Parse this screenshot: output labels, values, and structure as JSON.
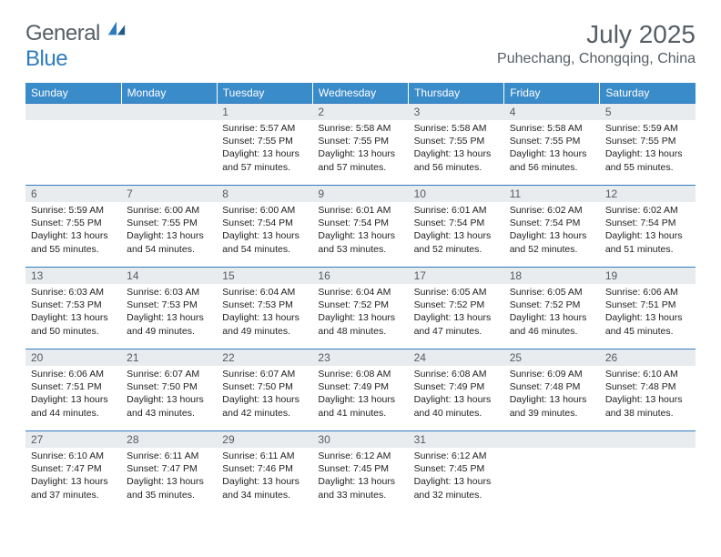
{
  "logo": {
    "text_general": "General",
    "text_blue": "Blue"
  },
  "header": {
    "month_title": "July 2025",
    "location": "Puhechang, Chongqing, China"
  },
  "colors": {
    "brand_blue": "#2f7bbf",
    "header_row": "#3a8bc9",
    "daynum_bg": "#e9ecef",
    "text_muted": "#565e66",
    "text_body": "#222222",
    "white": "#ffffff"
  },
  "typography": {
    "month_title_pt": 28,
    "location_pt": 16,
    "header_cell_pt": 12,
    "daynum_pt": 12,
    "body_pt": 10.5
  },
  "day_headers": [
    "Sunday",
    "Monday",
    "Tuesday",
    "Wednesday",
    "Thursday",
    "Friday",
    "Saturday"
  ],
  "weeks": [
    [
      {
        "n": "",
        "lines": []
      },
      {
        "n": "",
        "lines": []
      },
      {
        "n": "1",
        "lines": [
          "Sunrise: 5:57 AM",
          "Sunset: 7:55 PM",
          "Daylight: 13 hours and 57 minutes."
        ]
      },
      {
        "n": "2",
        "lines": [
          "Sunrise: 5:58 AM",
          "Sunset: 7:55 PM",
          "Daylight: 13 hours and 57 minutes."
        ]
      },
      {
        "n": "3",
        "lines": [
          "Sunrise: 5:58 AM",
          "Sunset: 7:55 PM",
          "Daylight: 13 hours and 56 minutes."
        ]
      },
      {
        "n": "4",
        "lines": [
          "Sunrise: 5:58 AM",
          "Sunset: 7:55 PM",
          "Daylight: 13 hours and 56 minutes."
        ]
      },
      {
        "n": "5",
        "lines": [
          "Sunrise: 5:59 AM",
          "Sunset: 7:55 PM",
          "Daylight: 13 hours and 55 minutes."
        ]
      }
    ],
    [
      {
        "n": "6",
        "lines": [
          "Sunrise: 5:59 AM",
          "Sunset: 7:55 PM",
          "Daylight: 13 hours and 55 minutes."
        ]
      },
      {
        "n": "7",
        "lines": [
          "Sunrise: 6:00 AM",
          "Sunset: 7:55 PM",
          "Daylight: 13 hours and 54 minutes."
        ]
      },
      {
        "n": "8",
        "lines": [
          "Sunrise: 6:00 AM",
          "Sunset: 7:54 PM",
          "Daylight: 13 hours and 54 minutes."
        ]
      },
      {
        "n": "9",
        "lines": [
          "Sunrise: 6:01 AM",
          "Sunset: 7:54 PM",
          "Daylight: 13 hours and 53 minutes."
        ]
      },
      {
        "n": "10",
        "lines": [
          "Sunrise: 6:01 AM",
          "Sunset: 7:54 PM",
          "Daylight: 13 hours and 52 minutes."
        ]
      },
      {
        "n": "11",
        "lines": [
          "Sunrise: 6:02 AM",
          "Sunset: 7:54 PM",
          "Daylight: 13 hours and 52 minutes."
        ]
      },
      {
        "n": "12",
        "lines": [
          "Sunrise: 6:02 AM",
          "Sunset: 7:54 PM",
          "Daylight: 13 hours and 51 minutes."
        ]
      }
    ],
    [
      {
        "n": "13",
        "lines": [
          "Sunrise: 6:03 AM",
          "Sunset: 7:53 PM",
          "Daylight: 13 hours and 50 minutes."
        ]
      },
      {
        "n": "14",
        "lines": [
          "Sunrise: 6:03 AM",
          "Sunset: 7:53 PM",
          "Daylight: 13 hours and 49 minutes."
        ]
      },
      {
        "n": "15",
        "lines": [
          "Sunrise: 6:04 AM",
          "Sunset: 7:53 PM",
          "Daylight: 13 hours and 49 minutes."
        ]
      },
      {
        "n": "16",
        "lines": [
          "Sunrise: 6:04 AM",
          "Sunset: 7:52 PM",
          "Daylight: 13 hours and 48 minutes."
        ]
      },
      {
        "n": "17",
        "lines": [
          "Sunrise: 6:05 AM",
          "Sunset: 7:52 PM",
          "Daylight: 13 hours and 47 minutes."
        ]
      },
      {
        "n": "18",
        "lines": [
          "Sunrise: 6:05 AM",
          "Sunset: 7:52 PM",
          "Daylight: 13 hours and 46 minutes."
        ]
      },
      {
        "n": "19",
        "lines": [
          "Sunrise: 6:06 AM",
          "Sunset: 7:51 PM",
          "Daylight: 13 hours and 45 minutes."
        ]
      }
    ],
    [
      {
        "n": "20",
        "lines": [
          "Sunrise: 6:06 AM",
          "Sunset: 7:51 PM",
          "Daylight: 13 hours and 44 minutes."
        ]
      },
      {
        "n": "21",
        "lines": [
          "Sunrise: 6:07 AM",
          "Sunset: 7:50 PM",
          "Daylight: 13 hours and 43 minutes."
        ]
      },
      {
        "n": "22",
        "lines": [
          "Sunrise: 6:07 AM",
          "Sunset: 7:50 PM",
          "Daylight: 13 hours and 42 minutes."
        ]
      },
      {
        "n": "23",
        "lines": [
          "Sunrise: 6:08 AM",
          "Sunset: 7:49 PM",
          "Daylight: 13 hours and 41 minutes."
        ]
      },
      {
        "n": "24",
        "lines": [
          "Sunrise: 6:08 AM",
          "Sunset: 7:49 PM",
          "Daylight: 13 hours and 40 minutes."
        ]
      },
      {
        "n": "25",
        "lines": [
          "Sunrise: 6:09 AM",
          "Sunset: 7:48 PM",
          "Daylight: 13 hours and 39 minutes."
        ]
      },
      {
        "n": "26",
        "lines": [
          "Sunrise: 6:10 AM",
          "Sunset: 7:48 PM",
          "Daylight: 13 hours and 38 minutes."
        ]
      }
    ],
    [
      {
        "n": "27",
        "lines": [
          "Sunrise: 6:10 AM",
          "Sunset: 7:47 PM",
          "Daylight: 13 hours and 37 minutes."
        ]
      },
      {
        "n": "28",
        "lines": [
          "Sunrise: 6:11 AM",
          "Sunset: 7:47 PM",
          "Daylight: 13 hours and 35 minutes."
        ]
      },
      {
        "n": "29",
        "lines": [
          "Sunrise: 6:11 AM",
          "Sunset: 7:46 PM",
          "Daylight: 13 hours and 34 minutes."
        ]
      },
      {
        "n": "30",
        "lines": [
          "Sunrise: 6:12 AM",
          "Sunset: 7:45 PM",
          "Daylight: 13 hours and 33 minutes."
        ]
      },
      {
        "n": "31",
        "lines": [
          "Sunrise: 6:12 AM",
          "Sunset: 7:45 PM",
          "Daylight: 13 hours and 32 minutes."
        ]
      },
      {
        "n": "",
        "lines": []
      },
      {
        "n": "",
        "lines": []
      }
    ]
  ]
}
